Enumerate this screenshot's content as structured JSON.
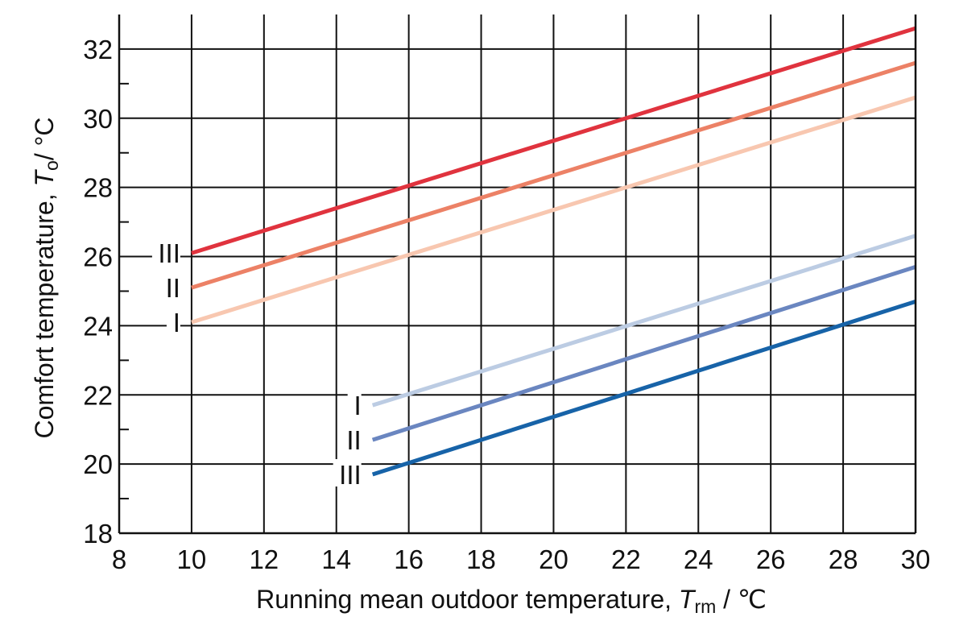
{
  "chart_data": {
    "type": "line",
    "xlabel": {
      "main": "Running mean outdoor temperature, ",
      "var": "T",
      "sub": "rm",
      "unit": " / ℃"
    },
    "ylabel": {
      "main": "Comfort temperature, ",
      "var": "T",
      "sub": "o",
      "unit": "/ °C"
    },
    "xlim": [
      8,
      30
    ],
    "ylim": [
      18,
      33
    ],
    "x_ticks": [
      8,
      10,
      12,
      14,
      16,
      18,
      20,
      22,
      24,
      26,
      28,
      30
    ],
    "y_ticks": [
      18,
      20,
      22,
      24,
      26,
      28,
      30,
      32
    ],
    "y_minor_ticks": [
      19,
      21,
      23,
      25,
      27,
      29,
      31
    ],
    "grid": true,
    "series": [
      {
        "name": "III",
        "group": "upper",
        "color": "#e0333e",
        "x": [
          10,
          30
        ],
        "y": [
          26.1,
          32.6
        ]
      },
      {
        "name": "II",
        "group": "upper",
        "color": "#ec8166",
        "x": [
          10,
          30
        ],
        "y": [
          25.1,
          31.6
        ]
      },
      {
        "name": "I",
        "group": "upper",
        "color": "#f8c7b0",
        "x": [
          10,
          30
        ],
        "y": [
          24.1,
          30.6
        ]
      },
      {
        "name": "I",
        "group": "lower",
        "color": "#bccce3",
        "x": [
          15,
          30
        ],
        "y": [
          21.7,
          26.6
        ]
      },
      {
        "name": "II",
        "group": "lower",
        "color": "#6a86c0",
        "x": [
          15,
          30
        ],
        "y": [
          20.7,
          25.7
        ]
      },
      {
        "name": "III",
        "group": "lower",
        "color": "#1763a8",
        "x": [
          15,
          30
        ],
        "y": [
          19.7,
          24.7
        ]
      }
    ]
  }
}
